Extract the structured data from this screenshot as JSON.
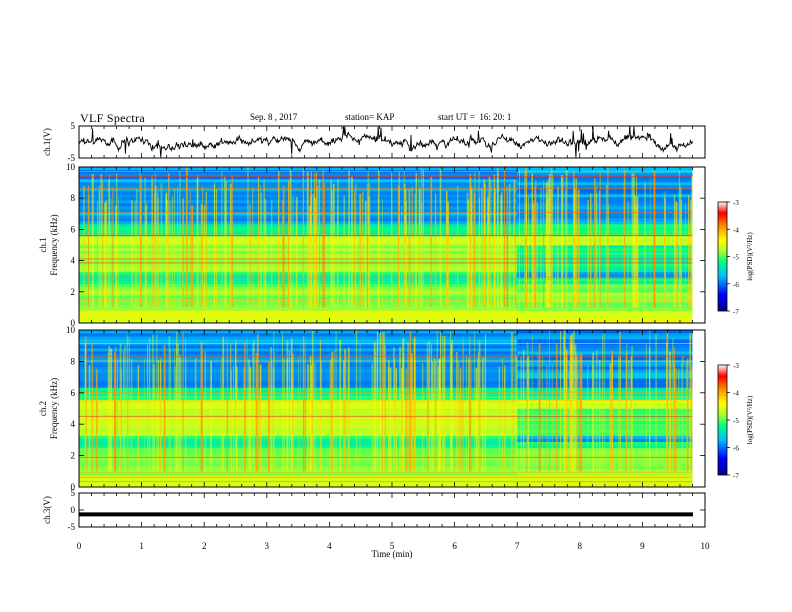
{
  "header": {
    "title": "VLF Spectra",
    "date": "Sep. 8 , 2017",
    "station": "station= KAP",
    "start_ut": "start UT =  16: 20: 1"
  },
  "chart_data": [
    {
      "type": "line",
      "panel": "waveform-ch1",
      "ylabel": "ch.1(V)",
      "ylim": [
        -5,
        5
      ],
      "yticks": [
        "5",
        "-5"
      ],
      "x_range_min": [
        0,
        9.8
      ],
      "color": "#000000"
    },
    {
      "type": "heatmap",
      "panel": "spectrogram-ch1",
      "ylabel": "ch.1\nFrequency (kHz)",
      "ylim": [
        0,
        10
      ],
      "yticks": [
        "0",
        "2",
        "4",
        "6",
        "8",
        "10"
      ],
      "data_range_min": [
        0,
        9.8
      ],
      "regime_change_min": 7.0,
      "colorbar": {
        "label": "log(PSD)(V²/Hz)",
        "range": [
          -7,
          -3
        ],
        "ticks": [
          "-3",
          "-4",
          "-5",
          "-6",
          "-7"
        ]
      }
    },
    {
      "type": "heatmap",
      "panel": "spectrogram-ch2",
      "ylabel": "ch.2\nFrequency (kHz)",
      "ylim": [
        0,
        10
      ],
      "yticks": [
        "0",
        "2",
        "4",
        "6",
        "8",
        "10"
      ],
      "data_range_min": [
        0,
        9.8
      ],
      "regime_change_min": 7.0,
      "colorbar": {
        "label": "log(PSD)(V²/Hz)",
        "range": [
          -7,
          -3
        ],
        "ticks": [
          "-3",
          "-4",
          "-5",
          "-6",
          "-7"
        ]
      }
    },
    {
      "type": "line",
      "panel": "waveform-ch3",
      "ylabel": "ch.3(V)",
      "ylim": [
        -5,
        5
      ],
      "yticks": [
        "5",
        "0",
        "-5"
      ],
      "level_V": -1.3,
      "color": "#000000"
    }
  ],
  "xaxis": {
    "label": "Time (min)",
    "range": [
      0,
      10
    ],
    "ticks": [
      "0",
      "1",
      "2",
      "3",
      "4",
      "5",
      "6",
      "7",
      "8",
      "9",
      "10"
    ]
  },
  "colors": {
    "colormap": [
      "#00008b",
      "#0000ff",
      "#00bfff",
      "#00ff7f",
      "#adff2f",
      "#ffff00",
      "#ff8c00",
      "#ff0000",
      "#ffffff"
    ],
    "trace": "#000000",
    "axis": "#000000"
  }
}
